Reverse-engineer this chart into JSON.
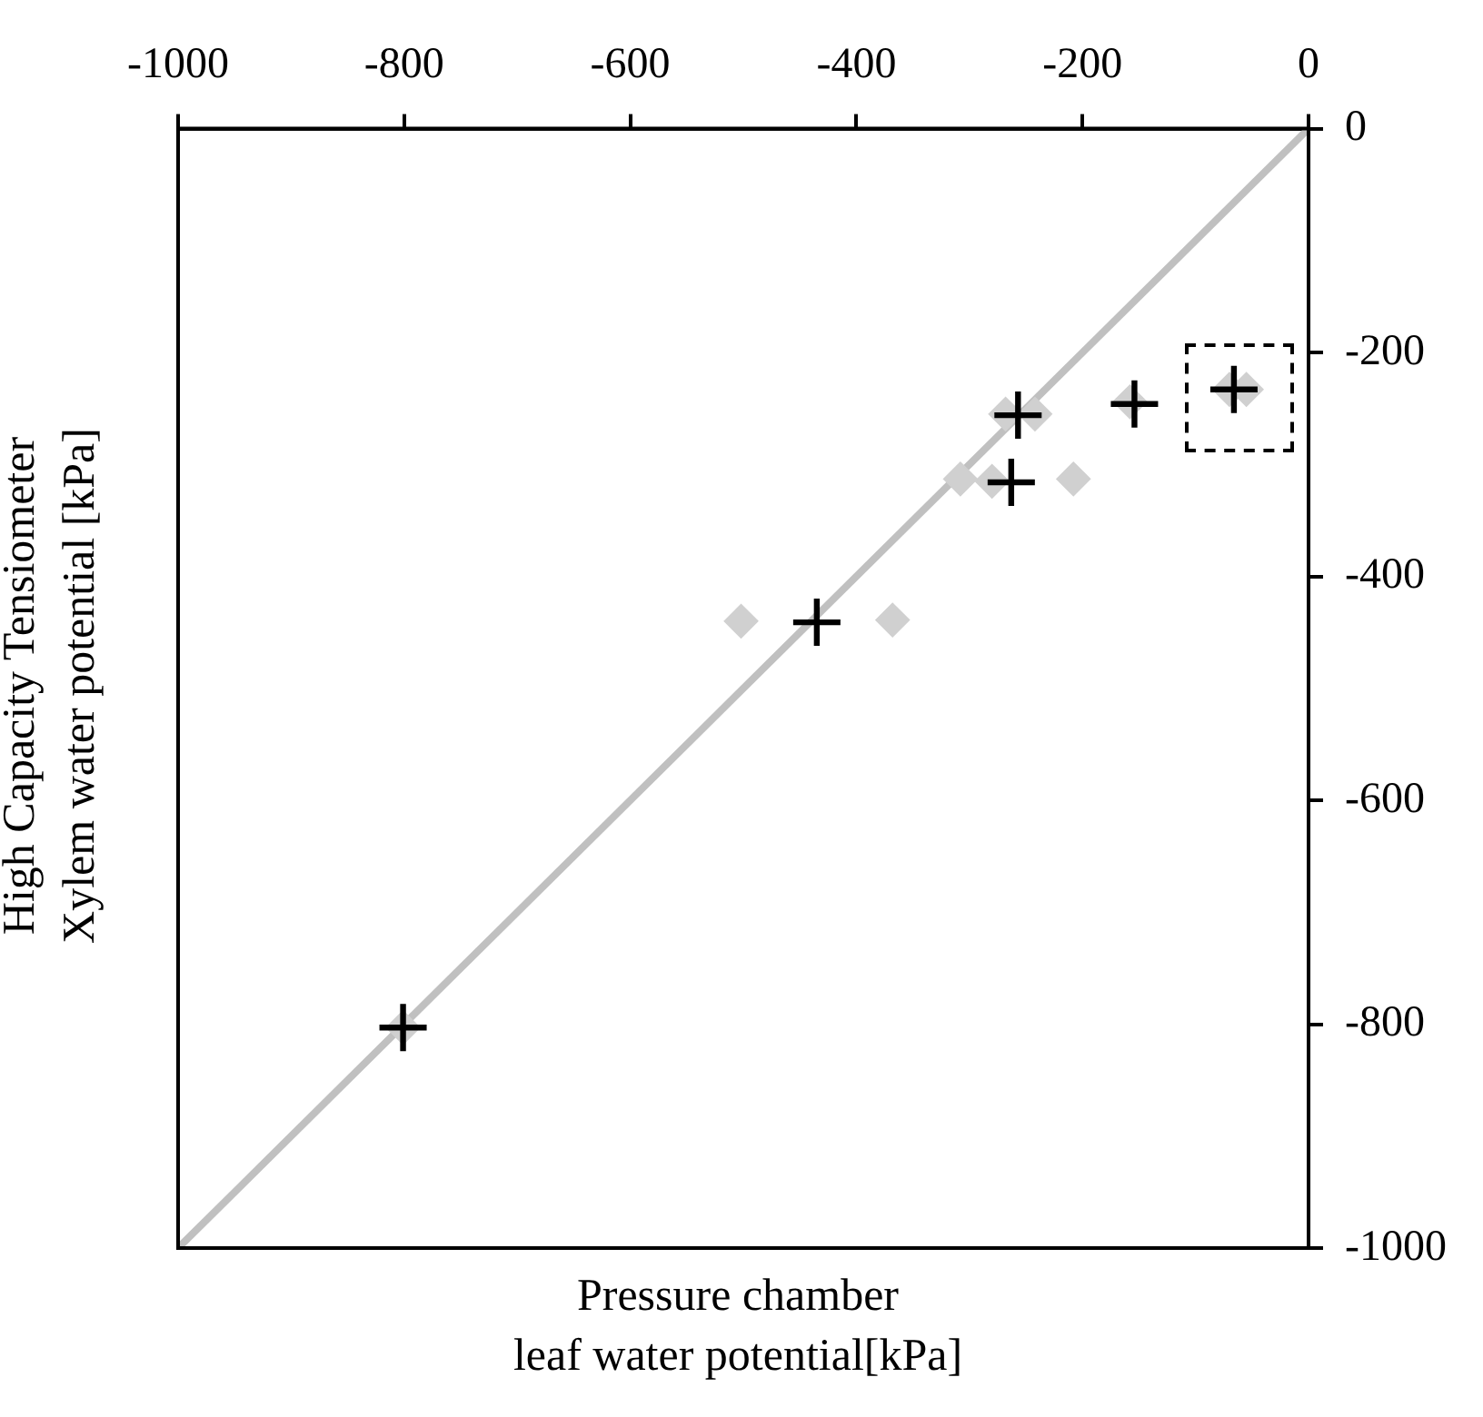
{
  "chart_data": {
    "type": "scatter",
    "xlabel": "Pressure chamber\nleaf water potential[kPa]",
    "ylabel": "High Capacity Tensiometer\nXylem water potential [kPa]",
    "xlim": [
      -1000,
      0
    ],
    "xticks": [
      -1000,
      -800,
      -600,
      -400,
      -200,
      0
    ],
    "ylim": [
      -1000,
      0
    ],
    "yticks": [
      -1000,
      -800,
      -600,
      -400,
      -200,
      0
    ],
    "grid": false,
    "legend": false,
    "series": [
      {
        "type": "line",
        "color": "#c0c0c0",
        "marker": "none",
        "x": [
          -1000,
          0
        ],
        "values": [
          -1000,
          0
        ]
      },
      {
        "color": "#d0d0d0",
        "marker": "diamond",
        "x": [
          -502,
          -368,
          -308,
          -280,
          -208,
          -268,
          -242,
          -158,
          -70,
          -55,
          -801
        ],
        "values": [
          -440,
          -439,
          -313,
          -315,
          -313,
          -255,
          -255,
          -244,
          -233,
          -233,
          -803
        ]
      },
      {
        "color": "#000000",
        "marker": "cross",
        "x": [
          -257,
          -263,
          -154,
          -66,
          -435,
          -801
        ],
        "values": [
          -256,
          -316,
          -246,
          -233,
          -441,
          -803
        ]
      }
    ]
  }
}
